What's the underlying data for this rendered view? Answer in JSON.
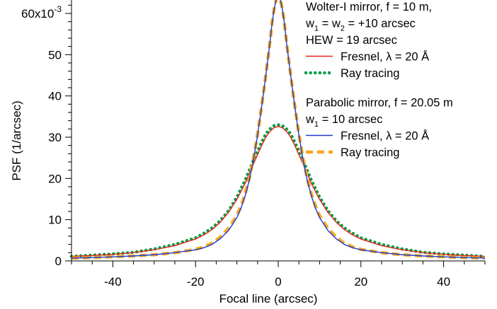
{
  "chart_data": {
    "type": "line",
    "xlabel": "Focal line (arcsec)",
    "ylabel": "PSF (1/arcsec)",
    "xlim": [
      -50,
      50
    ],
    "ylim": [
      0,
      63
    ],
    "x_ticks": [
      -40,
      -20,
      0,
      20,
      40
    ],
    "y_ticks": [
      {
        "value": 0,
        "label": "0"
      },
      {
        "value": 10,
        "label": "10"
      },
      {
        "value": 20,
        "label": "20"
      },
      {
        "value": 30,
        "label": "30"
      },
      {
        "value": 40,
        "label": "40"
      },
      {
        "value": 50,
        "label": "50"
      },
      {
        "value": 60,
        "label": "60x10",
        "exp": "-3"
      }
    ],
    "grid": false,
    "legend_groups": [
      {
        "lines": [
          {
            "text": "Wolter-I mirror, f = 10 m,"
          },
          {
            "text": "w1 = w2 = +10 arcsec",
            "parts": [
              "w",
              "1",
              " = w",
              "2",
              " = +10 arcsec"
            ]
          },
          {
            "text": "HEW = 19 arcsec"
          }
        ],
        "entries": [
          {
            "label": "Fresnel, λ = 20 Å",
            "color": "#e2231a",
            "style": "solid"
          },
          {
            "label": "Ray tracing",
            "color": "#0a9e4a",
            "style": "dotted"
          }
        ]
      },
      {
        "lines": [
          {
            "text": "Parabolic mirror, f = 20.05 m"
          },
          {
            "text": "w1 = 10 arcsec",
            "parts": [
              "w",
              "1",
              " = 10 arcsec"
            ]
          }
        ],
        "entries": [
          {
            "label": "Fresnel, λ = 20 Å",
            "color": "#1f3bd6",
            "style": "solid"
          },
          {
            "label": "Ray tracing",
            "color": "#f7a81b",
            "style": "dashed"
          }
        ]
      }
    ],
    "series": [
      {
        "group": "Wolter-I mirror",
        "kind": "Fresnel",
        "color": "#e2231a",
        "style": "solid",
        "x": [
          -50,
          -45,
          -40,
          -35,
          -30,
          -25,
          -20,
          -18,
          -16,
          -14,
          -12,
          -10,
          -8,
          -6,
          -4,
          -3,
          -2,
          -1,
          0,
          1,
          2,
          3,
          4,
          6,
          8,
          10,
          12,
          14,
          16,
          18,
          20,
          25,
          30,
          35,
          40,
          45,
          50
        ],
        "y": [
          1.1,
          1.3,
          1.6,
          2.0,
          2.7,
          3.7,
          5.3,
          6.3,
          7.6,
          9.4,
          11.8,
          14.9,
          18.8,
          23.5,
          28.0,
          30.0,
          31.4,
          32.3,
          32.6,
          32.3,
          31.4,
          30.0,
          28.0,
          23.5,
          18.8,
          14.9,
          11.8,
          9.4,
          7.6,
          6.3,
          5.3,
          3.7,
          2.7,
          2.0,
          1.6,
          1.3,
          1.1
        ]
      },
      {
        "group": "Wolter-I mirror",
        "kind": "Ray tracing",
        "color": "#0a9e4a",
        "style": "dotted",
        "x": [
          -50,
          -45,
          -40,
          -35,
          -30,
          -25,
          -20,
          -18,
          -16,
          -14,
          -12,
          -10,
          -8,
          -6,
          -4,
          -3,
          -2,
          -1,
          0,
          1,
          2,
          3,
          4,
          6,
          8,
          10,
          12,
          14,
          16,
          18,
          20,
          25,
          30,
          35,
          40,
          45,
          50
        ],
        "y": [
          1.1,
          1.4,
          1.7,
          2.1,
          2.9,
          4.0,
          5.6,
          6.7,
          8.0,
          9.8,
          12.2,
          15.5,
          19.6,
          24.4,
          28.8,
          30.8,
          32.0,
          32.8,
          33.0,
          32.8,
          32.0,
          30.8,
          28.8,
          24.4,
          19.6,
          15.5,
          12.2,
          9.8,
          8.0,
          6.7,
          5.6,
          4.0,
          2.9,
          2.1,
          1.7,
          1.4,
          1.1
        ]
      },
      {
        "group": "Parabolic mirror",
        "kind": "Fresnel",
        "color": "#1f3bd6",
        "style": "solid",
        "x": [
          -50,
          -45,
          -40,
          -35,
          -30,
          -25,
          -20,
          -18,
          -16,
          -14,
          -12,
          -10,
          -9,
          -8,
          -7,
          -6,
          -5,
          -4,
          -3,
          -2,
          -1.5,
          -1,
          -0.5,
          0,
          0.5,
          1,
          1.5,
          2,
          3,
          4,
          5,
          6,
          7,
          8,
          9,
          10,
          12,
          14,
          16,
          18,
          20,
          25,
          30,
          35,
          40,
          45,
          50
        ],
        "y": [
          0.7,
          0.8,
          1.0,
          1.2,
          1.5,
          2.0,
          2.7,
          3.2,
          4.0,
          5.4,
          7.4,
          10.5,
          12.8,
          15.8,
          19.6,
          24.5,
          30.5,
          37.5,
          45.0,
          53.0,
          57.5,
          61.0,
          63.3,
          63.8,
          63.3,
          61.0,
          57.5,
          53.0,
          45.0,
          37.5,
          30.5,
          24.5,
          19.6,
          15.8,
          12.8,
          10.5,
          7.4,
          5.4,
          4.0,
          3.2,
          2.7,
          2.0,
          1.5,
          1.2,
          1.0,
          0.8,
          0.7
        ]
      },
      {
        "group": "Parabolic mirror",
        "kind": "Ray tracing",
        "color": "#f7a81b",
        "style": "dashed",
        "x": [
          -50,
          -45,
          -40,
          -35,
          -30,
          -25,
          -20,
          -18,
          -16,
          -14,
          -12,
          -10,
          -9,
          -8,
          -7,
          -6,
          -5,
          -4,
          -3,
          -2,
          -1.5,
          -1,
          -0.5,
          0,
          0.5,
          1,
          1.5,
          2,
          3,
          4,
          5,
          6,
          7,
          8,
          9,
          10,
          12,
          14,
          16,
          18,
          20,
          25,
          30,
          35,
          40,
          45,
          50
        ],
        "y": [
          0.7,
          0.8,
          1.0,
          1.2,
          1.5,
          2.0,
          2.8,
          3.4,
          4.3,
          5.8,
          7.9,
          11.0,
          13.3,
          16.3,
          20.0,
          24.8,
          30.7,
          37.6,
          45.1,
          53.1,
          57.6,
          61.1,
          63.4,
          63.9,
          63.4,
          61.1,
          57.6,
          53.1,
          45.1,
          37.6,
          30.7,
          24.8,
          20.0,
          16.3,
          13.3,
          11.0,
          7.9,
          5.8,
          4.3,
          3.4,
          2.8,
          2.0,
          1.5,
          1.2,
          1.0,
          0.8,
          0.7
        ]
      }
    ]
  }
}
